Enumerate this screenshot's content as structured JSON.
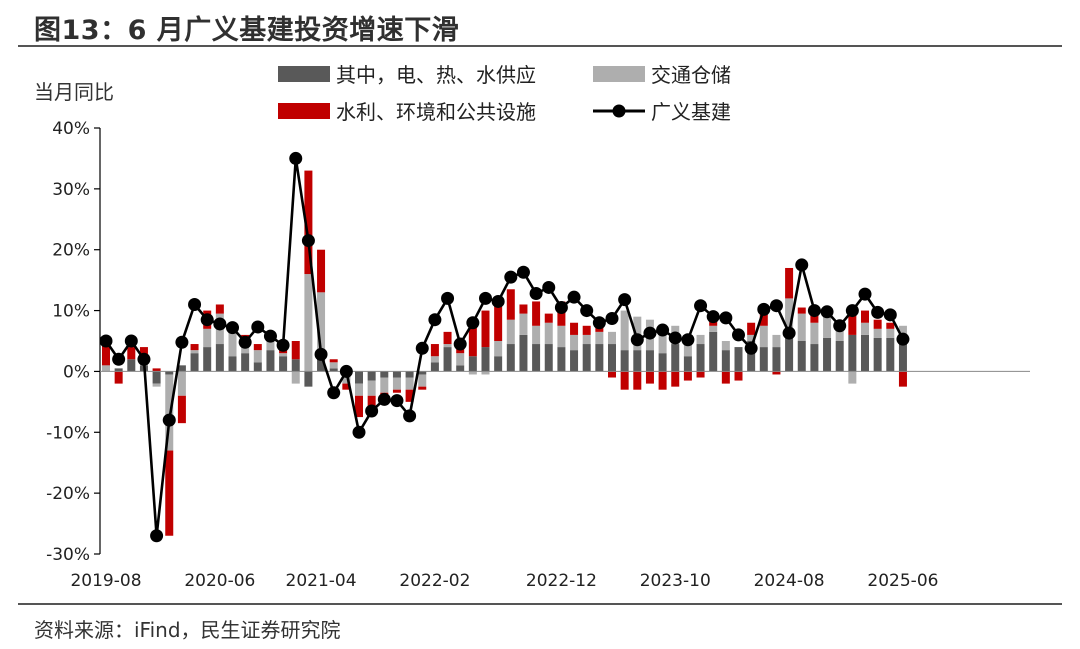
{
  "title": "图13：6 月广义基建投资增速下滑",
  "source": "资料来源：iFind，民生证券研究院",
  "colors": {
    "power": "#595959",
    "transport": "#AEAEAE",
    "water": "#C00000",
    "infra": "#000000"
  },
  "chart_data": {
    "type": "bar+line",
    "ylabel": "当月同比",
    "yticks": [
      "40%",
      "30%",
      "20%",
      "10%",
      "0%",
      "-10%",
      "-20%",
      "-30%"
    ],
    "ylim": [
      -30,
      40
    ],
    "xtick_labels": [
      "2019-08",
      "2020-06",
      "2021-04",
      "2022-02",
      "2022-12",
      "2023-10",
      "2024-08",
      "2025-06"
    ],
    "x": [
      "2019-08",
      "2019-09",
      "2019-10",
      "2019-11",
      "2019-12",
      "2020-02",
      "2020-03",
      "2020-04",
      "2020-05",
      "2020-06",
      "2020-07",
      "2020-08",
      "2020-09",
      "2020-10",
      "2020-11",
      "2020-12",
      "2021-03",
      "2021-04",
      "2021-05",
      "2021-06",
      "2021-07",
      "2021-08",
      "2021-09",
      "2021-10",
      "2021-11",
      "2021-12",
      "2022-02",
      "2022-03",
      "2022-04",
      "2022-05",
      "2022-06",
      "2022-07",
      "2022-08",
      "2022-09",
      "2022-10",
      "2022-11",
      "2022-12",
      "2023-02",
      "2023-03",
      "2023-04",
      "2023-05",
      "2023-06",
      "2023-07",
      "2023-08",
      "2023-09",
      "2023-10",
      "2023-11",
      "2023-12",
      "2024-02",
      "2024-03",
      "2024-04",
      "2024-05",
      "2024-06",
      "2024-07",
      "2024-08",
      "2024-09",
      "2024-10",
      "2024-11",
      "2024-12",
      "2025-02",
      "2025-03",
      "2025-04",
      "2025-05",
      "2025-06"
    ],
    "legend": [
      "其中，电、热、水供应",
      "交通仓储",
      "水利、环境和公共设施",
      "广义基建"
    ],
    "series": [
      {
        "name": "其中，电、热、水供应",
        "kind": "bar",
        "values": [
          0.0,
          0.5,
          2.0,
          1.0,
          -2.0,
          -0.5,
          1.0,
          3.0,
          4.0,
          4.5,
          2.5,
          3.0,
          1.5,
          3.5,
          2.5,
          2.0,
          -2.5,
          2.5,
          0.5,
          -1.0,
          -2.0,
          -1.5,
          -1.0,
          -1.0,
          -1.0,
          -0.5,
          1.5,
          4.0,
          1.0,
          2.5,
          4.0,
          2.5,
          4.5,
          6.0,
          4.5,
          4.5,
          4.0,
          3.5,
          4.5,
          4.5,
          4.5,
          3.5,
          3.5,
          3.5,
          3.0,
          4.5,
          2.5,
          4.5,
          6.5,
          3.5,
          4.0,
          5.0,
          4.0,
          4.0,
          7.0,
          5.0,
          4.5,
          5.5,
          5.0,
          6.0,
          6.0,
          5.5,
          5.5,
          4.5
        ]
      },
      {
        "name": "交通仓储",
        "kind": "bar",
        "values": [
          1.0,
          0.0,
          0.0,
          0.5,
          -0.5,
          -12.5,
          -4.0,
          0.5,
          3.0,
          5.0,
          4.0,
          2.5,
          2.0,
          1.5,
          0.5,
          -2.0,
          16.0,
          10.5,
          1.0,
          -1.0,
          -2.0,
          -2.5,
          -2.5,
          -2.0,
          -2.0,
          -2.0,
          1.0,
          0.5,
          2.0,
          -0.5,
          -0.5,
          2.5,
          4.0,
          3.5,
          3.0,
          3.5,
          3.5,
          2.5,
          1.5,
          2.0,
          2.0,
          6.5,
          5.5,
          5.0,
          3.5,
          3.0,
          3.0,
          1.5,
          1.0,
          1.5,
          0.0,
          1.0,
          3.5,
          2.0,
          5.0,
          4.5,
          3.5,
          3.5,
          2.0,
          -2.0,
          2.0,
          1.5,
          1.5,
          3.0
        ]
      },
      {
        "name": "水利、环境和公共设施",
        "kind": "bar",
        "values": [
          4.0,
          -2.0,
          2.0,
          2.5,
          0.5,
          -14.0,
          -4.5,
          1.0,
          3.0,
          1.5,
          0.5,
          0.5,
          1.0,
          1.5,
          2.0,
          3.0,
          17.0,
          7.0,
          0.5,
          -1.0,
          -3.5,
          -3.0,
          -1.0,
          -0.5,
          -2.0,
          -0.5,
          2.0,
          2.0,
          1.0,
          6.0,
          6.0,
          6.5,
          5.0,
          1.5,
          4.0,
          1.5,
          4.0,
          2.0,
          1.5,
          1.0,
          -1.0,
          -3.0,
          -3.0,
          -2.0,
          -3.0,
          -2.5,
          -1.5,
          -1.0,
          1.5,
          -2.0,
          -1.5,
          2.0,
          3.0,
          -0.5,
          5.0,
          1.0,
          1.5,
          0.0,
          1.0,
          3.5,
          2.0,
          1.5,
          1.0,
          -2.5
        ]
      },
      {
        "name": "广义基建",
        "kind": "line",
        "values": [
          5.0,
          2.0,
          5.0,
          2.0,
          -27.0,
          -8.0,
          4.8,
          11.0,
          8.5,
          7.8,
          7.2,
          4.8,
          7.3,
          5.8,
          4.3,
          35.0,
          21.5,
          2.8,
          -3.5,
          0.0,
          -10.0,
          -6.5,
          -4.6,
          -4.8,
          -7.3,
          3.8,
          8.5,
          12.0,
          4.5,
          8.0,
          12.0,
          11.5,
          15.5,
          16.3,
          12.8,
          13.8,
          10.5,
          12.2,
          10.0,
          8.0,
          8.7,
          11.8,
          5.2,
          6.3,
          6.8,
          5.5,
          5.2,
          10.8,
          9.0,
          8.8,
          6.0,
          3.8,
          10.2,
          10.8,
          6.3,
          17.5,
          10.0,
          9.8,
          7.5,
          10.0,
          12.7,
          9.7,
          9.3,
          5.3
        ]
      }
    ]
  }
}
